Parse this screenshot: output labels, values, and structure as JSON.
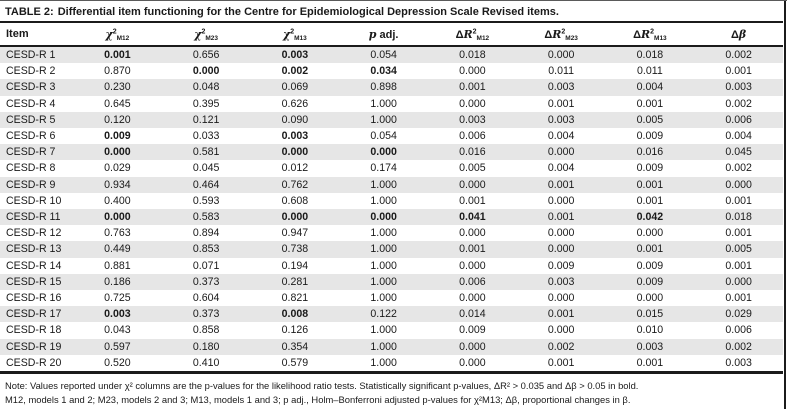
{
  "title": {
    "label": "TABLE 2:",
    "text": "Differential item functioning for the Centre for Epidemiological Depression Scale Revised items."
  },
  "table": {
    "columns": [
      {
        "id": "item",
        "pre": "Item"
      },
      {
        "id": "chi2-m12",
        "it": "χ",
        "sup": "2",
        "sub": "M12"
      },
      {
        "id": "chi2-m23",
        "it": "χ",
        "sup": "2",
        "sub": "M23"
      },
      {
        "id": "chi2-m13",
        "it": "χ",
        "sup": "2",
        "sub": "M13"
      },
      {
        "id": "p-adj",
        "it": "p",
        "post": " adj."
      },
      {
        "id": "delta-r2-m12",
        "pre": "Δ",
        "it": "R",
        "sup": "2",
        "sub": "M12"
      },
      {
        "id": "delta-r2-m23",
        "pre": "Δ",
        "it": "R",
        "sup": "2",
        "sub": "M23"
      },
      {
        "id": "delta-r2-m13",
        "pre": "Δ",
        "it": "R",
        "sup": "2",
        "sub": "M13"
      },
      {
        "id": "delta-beta",
        "pre": "Δ",
        "it": "β"
      }
    ],
    "rows": [
      {
        "item": "CESD-R 1",
        "values": [
          "0.001",
          "0.656",
          "0.003",
          "0.054",
          "0.018",
          "0.000",
          "0.018",
          "0.002"
        ],
        "bold": [
          true,
          false,
          true,
          false,
          false,
          false,
          false,
          false
        ]
      },
      {
        "item": "CESD-R 2",
        "values": [
          "0.870",
          "0.000",
          "0.002",
          "0.034",
          "0.000",
          "0.011",
          "0.011",
          "0.001"
        ],
        "bold": [
          false,
          true,
          true,
          true,
          false,
          false,
          false,
          false
        ]
      },
      {
        "item": "CESD-R 3",
        "values": [
          "0.230",
          "0.048",
          "0.069",
          "0.898",
          "0.001",
          "0.003",
          "0.004",
          "0.003"
        ],
        "bold": [
          false,
          false,
          false,
          false,
          false,
          false,
          false,
          false
        ]
      },
      {
        "item": "CESD-R 4",
        "values": [
          "0.645",
          "0.395",
          "0.626",
          "1.000",
          "0.000",
          "0.001",
          "0.001",
          "0.002"
        ],
        "bold": [
          false,
          false,
          false,
          false,
          false,
          false,
          false,
          false
        ]
      },
      {
        "item": "CESD-R 5",
        "values": [
          "0.120",
          "0.121",
          "0.090",
          "1.000",
          "0.003",
          "0.003",
          "0.005",
          "0.006"
        ],
        "bold": [
          false,
          false,
          false,
          false,
          false,
          false,
          false,
          false
        ]
      },
      {
        "item": "CESD-R 6",
        "values": [
          "0.009",
          "0.033",
          "0.003",
          "0.054",
          "0.006",
          "0.004",
          "0.009",
          "0.004"
        ],
        "bold": [
          true,
          false,
          true,
          false,
          false,
          false,
          false,
          false
        ]
      },
      {
        "item": "CESD-R 7",
        "values": [
          "0.000",
          "0.581",
          "0.000",
          "0.000",
          "0.016",
          "0.000",
          "0.016",
          "0.045"
        ],
        "bold": [
          true,
          false,
          true,
          true,
          false,
          false,
          false,
          false
        ]
      },
      {
        "item": "CESD-R 8",
        "values": [
          "0.029",
          "0.045",
          "0.012",
          "0.174",
          "0.005",
          "0.004",
          "0.009",
          "0.002"
        ],
        "bold": [
          false,
          false,
          false,
          false,
          false,
          false,
          false,
          false
        ]
      },
      {
        "item": "CESD-R 9",
        "values": [
          "0.934",
          "0.464",
          "0.762",
          "1.000",
          "0.000",
          "0.001",
          "0.001",
          "0.000"
        ],
        "bold": [
          false,
          false,
          false,
          false,
          false,
          false,
          false,
          false
        ]
      },
      {
        "item": "CESD-R 10",
        "values": [
          "0.400",
          "0.593",
          "0.608",
          "1.000",
          "0.001",
          "0.000",
          "0.001",
          "0.001"
        ],
        "bold": [
          false,
          false,
          false,
          false,
          false,
          false,
          false,
          false
        ]
      },
      {
        "item": "CESD-R 11",
        "values": [
          "0.000",
          "0.583",
          "0.000",
          "0.000",
          "0.041",
          "0.001",
          "0.042",
          "0.018"
        ],
        "bold": [
          true,
          false,
          true,
          true,
          true,
          false,
          true,
          false
        ]
      },
      {
        "item": "CESD-R 12",
        "values": [
          "0.763",
          "0.894",
          "0.947",
          "1.000",
          "0.000",
          "0.000",
          "0.000",
          "0.001"
        ],
        "bold": [
          false,
          false,
          false,
          false,
          false,
          false,
          false,
          false
        ]
      },
      {
        "item": "CESD-R 13",
        "values": [
          "0.449",
          "0.853",
          "0.738",
          "1.000",
          "0.001",
          "0.000",
          "0.001",
          "0.005"
        ],
        "bold": [
          false,
          false,
          false,
          false,
          false,
          false,
          false,
          false
        ]
      },
      {
        "item": "CESD-R 14",
        "values": [
          "0.881",
          "0.071",
          "0.194",
          "1.000",
          "0.000",
          "0.009",
          "0.009",
          "0.001"
        ],
        "bold": [
          false,
          false,
          false,
          false,
          false,
          false,
          false,
          false
        ]
      },
      {
        "item": "CESD-R 15",
        "values": [
          "0.186",
          "0.373",
          "0.281",
          "1.000",
          "0.006",
          "0.003",
          "0.009",
          "0.000"
        ],
        "bold": [
          false,
          false,
          false,
          false,
          false,
          false,
          false,
          false
        ]
      },
      {
        "item": "CESD-R 16",
        "values": [
          "0.725",
          "0.604",
          "0.821",
          "1.000",
          "0.000",
          "0.000",
          "0.000",
          "0.001"
        ],
        "bold": [
          false,
          false,
          false,
          false,
          false,
          false,
          false,
          false
        ]
      },
      {
        "item": "CESD-R 17",
        "values": [
          "0.003",
          "0.373",
          "0.008",
          "0.122",
          "0.014",
          "0.001",
          "0.015",
          "0.029"
        ],
        "bold": [
          true,
          false,
          true,
          false,
          false,
          false,
          false,
          false
        ]
      },
      {
        "item": "CESD-R 18",
        "values": [
          "0.043",
          "0.858",
          "0.126",
          "1.000",
          "0.009",
          "0.000",
          "0.010",
          "0.006"
        ],
        "bold": [
          false,
          false,
          false,
          false,
          false,
          false,
          false,
          false
        ]
      },
      {
        "item": "CESD-R 19",
        "values": [
          "0.597",
          "0.180",
          "0.354",
          "1.000",
          "0.000",
          "0.002",
          "0.003",
          "0.002"
        ],
        "bold": [
          false,
          false,
          false,
          false,
          false,
          false,
          false,
          false
        ]
      },
      {
        "item": "CESD-R 20",
        "values": [
          "0.520",
          "0.410",
          "0.579",
          "1.000",
          "0.000",
          "0.001",
          "0.001",
          "0.003"
        ],
        "bold": [
          false,
          false,
          false,
          false,
          false,
          false,
          false,
          false
        ]
      }
    ]
  },
  "notes": [
    "Note: Values reported under χ² columns are the p-values for the likelihood ratio tests. Statistically significant p-values, ΔR² > 0.035 and Δβ > 0.05 in bold.",
    "M12, models 1 and 2; M23, models 2 and 3; M13, models 1 and 3; p adj., Holm–Bonferroni adjusted p-values for χ²M13; Δβ, proportional changes in β."
  ],
  "colors": {
    "stripe": "#e6e6e6",
    "rule": "#1b1b1b",
    "text": "#1a1a1a"
  }
}
